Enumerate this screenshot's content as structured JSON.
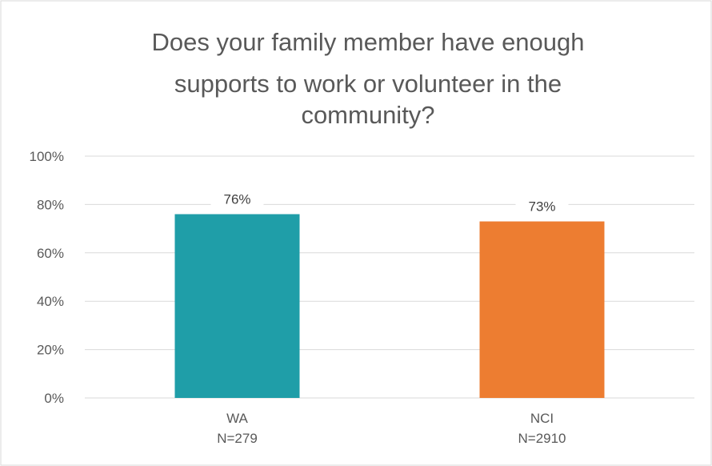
{
  "chart_data": {
    "type": "bar",
    "title_lines": [
      "Does your family member have enough",
      "supports to work or volunteer in the",
      "community?"
    ],
    "categories": [
      {
        "name": "WA",
        "n": "N=279"
      },
      {
        "name": "NCI",
        "n": "N=2910"
      }
    ],
    "values": [
      76,
      73
    ],
    "data_labels": [
      "76%",
      "73%"
    ],
    "colors": [
      "#1f9ea8",
      "#ed7d31"
    ],
    "y_ticks": [
      {
        "value": 0,
        "label": "0%"
      },
      {
        "value": 20,
        "label": "20%"
      },
      {
        "value": 40,
        "label": "40%"
      },
      {
        "value": 60,
        "label": "60%"
      },
      {
        "value": 80,
        "label": "80%"
      },
      {
        "value": 100,
        "label": "100%"
      }
    ],
    "ylim": [
      0,
      100
    ],
    "grid": true,
    "legend": "none"
  }
}
